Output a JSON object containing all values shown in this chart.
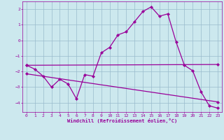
{
  "xlabel": "Windchill (Refroidissement éolien,°C)",
  "bg_color": "#cce8ee",
  "line_color": "#990099",
  "grid_color": "#99bbcc",
  "xlim": [
    -0.5,
    23.5
  ],
  "ylim": [
    -4.6,
    2.5
  ],
  "yticks": [
    -4,
    -3,
    -2,
    -1,
    0,
    1,
    2
  ],
  "xticks": [
    0,
    1,
    2,
    3,
    4,
    5,
    6,
    7,
    8,
    9,
    10,
    11,
    12,
    13,
    14,
    15,
    16,
    17,
    18,
    19,
    20,
    21,
    22,
    23
  ],
  "line1_x": [
    0,
    1,
    2,
    3,
    4,
    5,
    6,
    7,
    8,
    9,
    10,
    11,
    12,
    13,
    14,
    15,
    16,
    17,
    18,
    19,
    20,
    21,
    22,
    23
  ],
  "line1_y": [
    -1.6,
    -1.85,
    -2.3,
    -3.0,
    -2.5,
    -2.8,
    -3.75,
    -2.2,
    -2.3,
    -0.8,
    -0.45,
    0.35,
    0.55,
    1.2,
    1.85,
    2.15,
    1.55,
    1.7,
    -0.1,
    -1.6,
    -1.95,
    -3.3,
    -4.2,
    -4.35
  ],
  "line2_x": [
    0,
    23
  ],
  "line2_y": [
    -1.6,
    -1.55
  ],
  "line3_x": [
    0,
    23
  ],
  "line3_y": [
    -2.15,
    -3.95
  ],
  "marker": "D",
  "markersize": 2.2,
  "linewidth": 0.9
}
